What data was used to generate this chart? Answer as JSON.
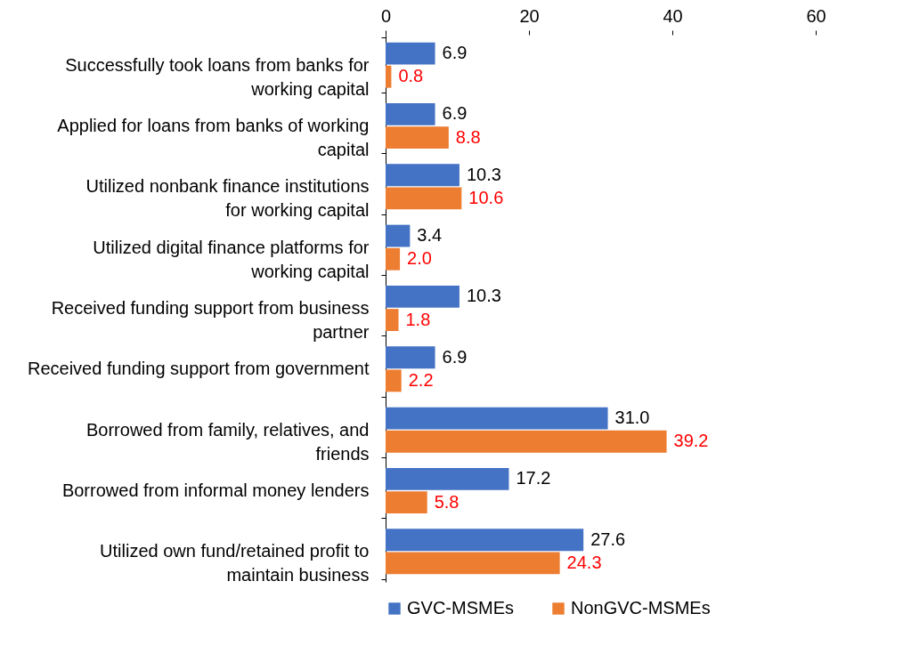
{
  "chart_data": {
    "type": "bar",
    "orientation": "horizontal",
    "categories": [
      "Successfully took loans from banks for working capital",
      "Applied for loans from banks of working capital",
      "Utilized nonbank finance institutions for working capital",
      "Utilized digital finance platforms for working capital",
      "Received funding support from business partner",
      "Received funding support from government",
      "Borrowed from family, relatives, and friends",
      "Borrowed from informal money lenders",
      "Utilized own fund/retained profit to maintain business"
    ],
    "series": [
      {
        "name": "GVC-MSMEs",
        "color": "#4472c4",
        "values": [
          6.9,
          6.9,
          10.3,
          3.4,
          10.3,
          6.9,
          31.0,
          17.2,
          27.6
        ],
        "value_labels": [
          "6.9",
          "6.9",
          "10.3",
          "3.4",
          "10.3",
          "6.9",
          "31.0",
          "17.2",
          "27.6"
        ]
      },
      {
        "name": "NonGVC-MSMEs",
        "color": "#ed7d31",
        "values": [
          0.8,
          8.8,
          10.6,
          2.0,
          1.8,
          2.2,
          39.2,
          5.8,
          24.3
        ],
        "value_labels": [
          "0.8",
          "8.8",
          "10.6",
          "2.0",
          "1.8",
          "2.2",
          "39.2",
          "5.8",
          "24.3"
        ]
      }
    ],
    "xlim": [
      0,
      60
    ],
    "xticks": [
      0,
      20,
      40,
      60
    ],
    "grid": false,
    "legend": "bottom"
  }
}
